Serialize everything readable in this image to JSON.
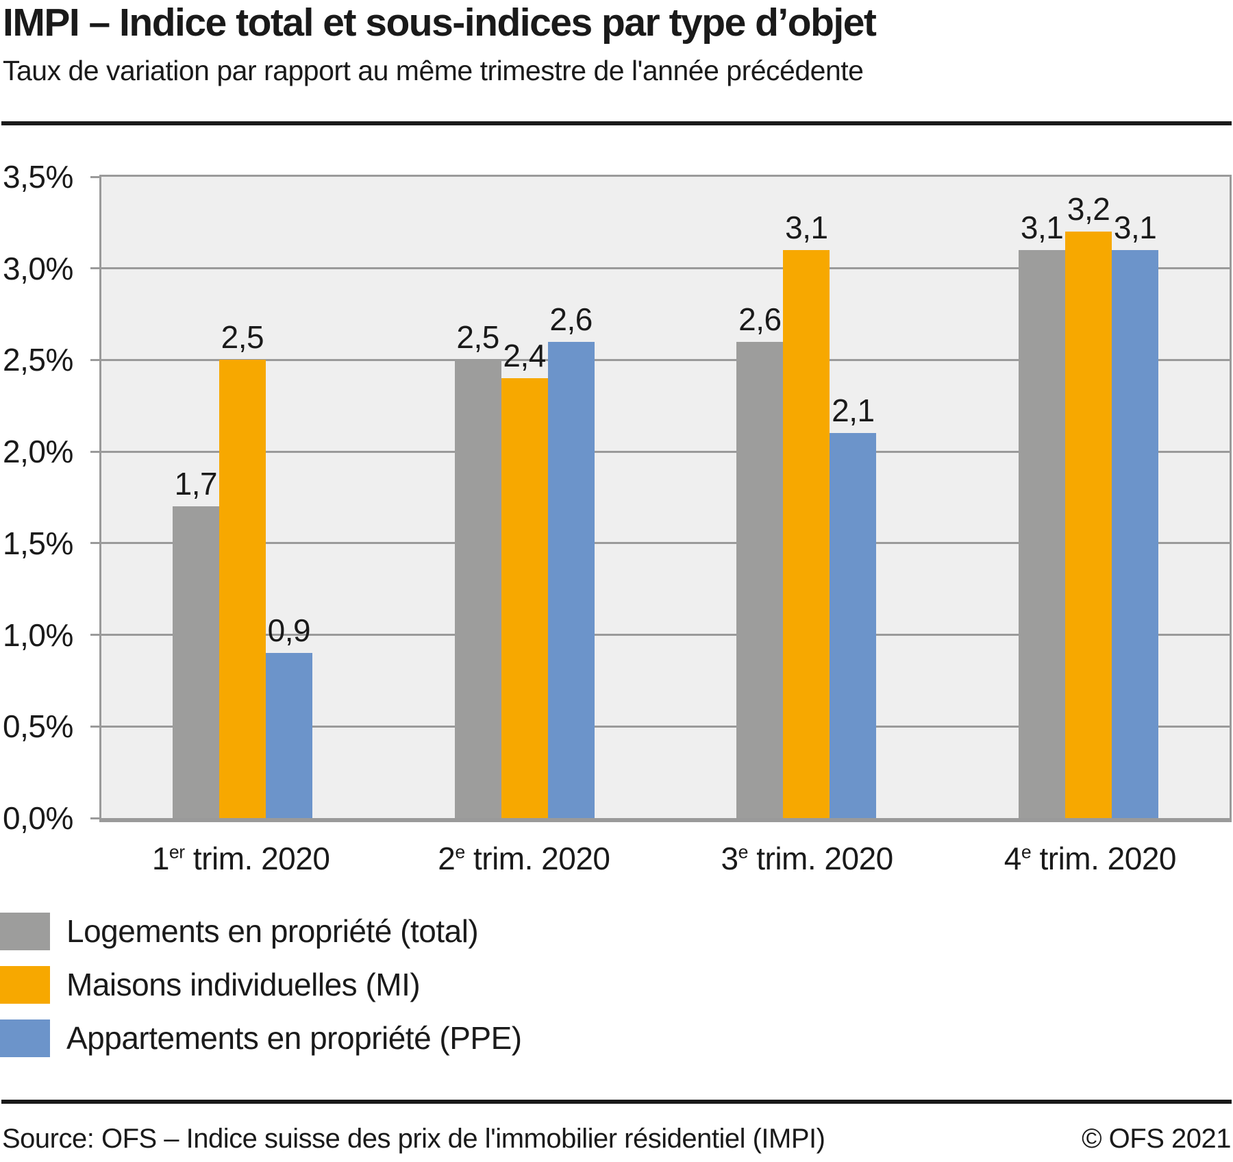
{
  "header": {
    "title": "IMPI – Indice total et sous-indices par type d’objet",
    "subtitle": "Taux de variation par rapport au même trimestre de l'année précédente"
  },
  "chart_data": {
    "type": "bar",
    "title": "IMPI – Indice total et sous-indices par type d’objet",
    "subtitle": "Taux de variation par rapport au même trimestre de l'année précédente",
    "categories": [
      "1er trim. 2020",
      "2e trim. 2020",
      "3e trim. 2020",
      "4e trim. 2020"
    ],
    "categories_rich": [
      {
        "prefix": "1",
        "sup": "er",
        "suffix": " trim. 2020"
      },
      {
        "prefix": "2",
        "sup": "e",
        "suffix": " trim. 2020"
      },
      {
        "prefix": "3",
        "sup": "e",
        "suffix": " trim. 2020"
      },
      {
        "prefix": "4",
        "sup": "e",
        "suffix": " trim. 2020"
      }
    ],
    "series": [
      {
        "name": "Logements en propriété (total)",
        "color": "#9D9D9C",
        "values": [
          1.7,
          2.5,
          2.6,
          3.1
        ],
        "value_labels": [
          "1,7",
          "2,5",
          "2,6",
          "3,1"
        ]
      },
      {
        "name": "Maisons individuelles (MI)",
        "color": "#F7A800",
        "values": [
          2.5,
          2.4,
          3.1,
          3.2
        ],
        "value_labels": [
          "2,5",
          "2,4",
          "3,1",
          "3,2"
        ]
      },
      {
        "name": "Appartements en propriété (PPE)",
        "color": "#6C94CA",
        "values": [
          0.9,
          2.6,
          2.1,
          3.1
        ],
        "value_labels": [
          "0,9",
          "2,6",
          "2,1",
          "3,1"
        ]
      }
    ],
    "xlabel": "",
    "ylabel": "",
    "ylim": [
      0,
      3.5
    ],
    "ytick_step": 0.5,
    "ytick_labels_bottom_to_top": [
      "0,0%",
      "0,5%",
      "1,0%",
      "1,5%",
      "2,0%",
      "2,5%",
      "3,0%",
      "3,5%"
    ],
    "grid": true,
    "legend_position": "bottom-left",
    "colors": {
      "plot_background": "#EFEFEF",
      "grid_line": "#9A9A9A",
      "text": "#1A1A1A"
    }
  },
  "footer": {
    "source": "Source: OFS – Indice suisse des prix de l'immobilier résidentiel (IMPI)",
    "copyright": "© OFS 2021"
  }
}
